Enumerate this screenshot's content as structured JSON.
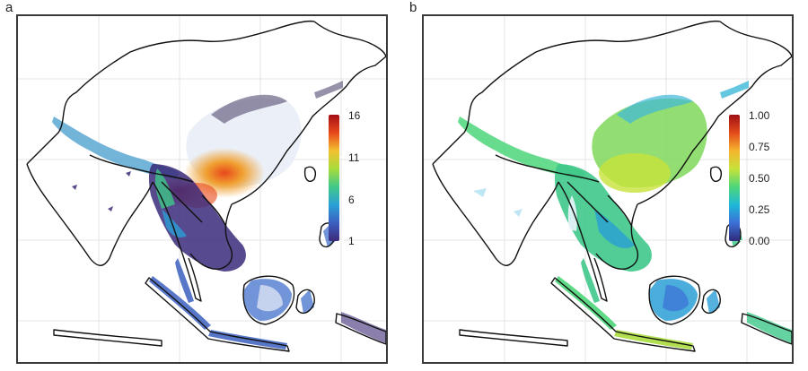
{
  "figure": {
    "panels": [
      {
        "letter": "a",
        "legend": {
          "ticks": [
            "16",
            "11",
            "6",
            "1"
          ],
          "colors": [
            "#a50f15",
            "#e8481b",
            "#f2c130",
            "#a8dc3c",
            "#3fc88a",
            "#2a9fd6",
            "#3b5fc0",
            "#3b2a7a"
          ]
        }
      },
      {
        "letter": "b",
        "legend": {
          "ticks": [
            "1.00",
            "0.75",
            "0.50",
            "0.25",
            "0.00"
          ],
          "colors": [
            "#9e1014",
            "#e34a1a",
            "#f5b52e",
            "#c7e23a",
            "#4dd67a",
            "#1fb8d8",
            "#3b6fd6",
            "#2f2a78"
          ]
        }
      }
    ],
    "colors": {
      "coastline": "#111111",
      "frame": "#3a3a3a",
      "grid": "#e6e6e6"
    }
  }
}
